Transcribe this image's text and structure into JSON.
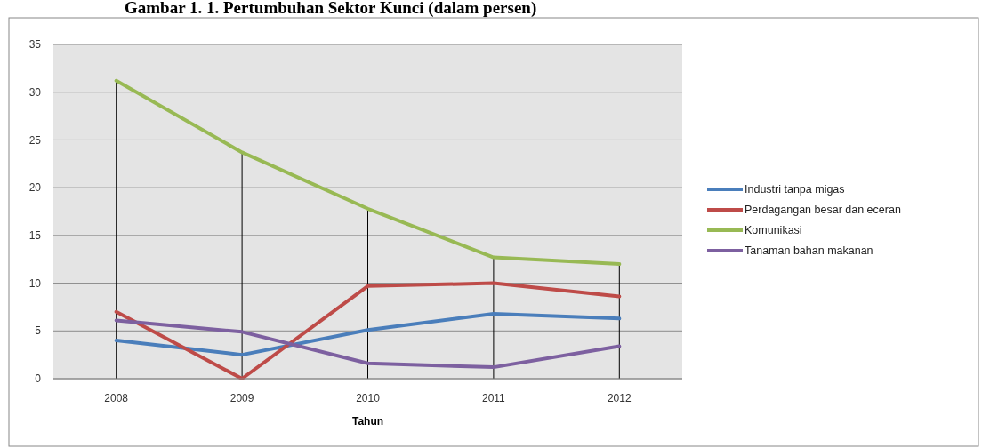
{
  "chart_data": {
    "type": "line",
    "title": "Gambar 1. 1. Pertumbuhan Sektor Kunci (dalam persen)",
    "xlabel": "Tahun",
    "categories": [
      "2008",
      "2009",
      "2010",
      "2011",
      "2012"
    ],
    "series": [
      {
        "name": "Industri tanpa migas",
        "color": "#4a7ebb",
        "values": [
          4.0,
          2.5,
          5.1,
          6.8,
          6.3
        ]
      },
      {
        "name": "Perdagangan besar dan eceran",
        "color": "#be4b48",
        "values": [
          7.0,
          0,
          9.7,
          10.0,
          8.6
        ]
      },
      {
        "name": "Komunikasi",
        "color": "#98b954",
        "values": [
          31.2,
          23.7,
          17.8,
          12.7,
          12.0
        ]
      },
      {
        "name": "Tanaman bahan makanan",
        "color": "#7d60a0",
        "values": [
          6.1,
          4.9,
          1.6,
          1.2,
          3.4
        ]
      }
    ],
    "ref_lines": [
      {
        "axis": "x",
        "value": "2008",
        "color": "#000000"
      },
      {
        "axis": "x",
        "value": "2009",
        "color": "#000000"
      },
      {
        "axis": "x",
        "value": "2010",
        "color": "#000000"
      },
      {
        "axis": "x",
        "value": "2011",
        "color": "#000000"
      },
      {
        "axis": "x",
        "value": "2012",
        "color": "#000000"
      }
    ],
    "ylim": [
      0,
      35
    ],
    "yticks": [
      0,
      5,
      10,
      15,
      20,
      25,
      30,
      35
    ],
    "grid": "y",
    "legend": "right",
    "marker": "none",
    "line_style": "solid"
  }
}
